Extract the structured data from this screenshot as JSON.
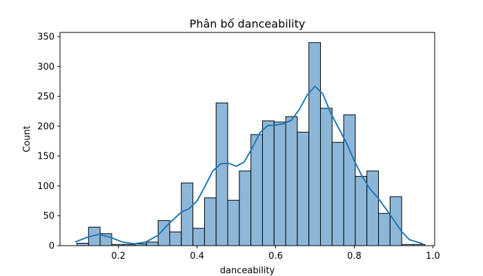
{
  "chart_data": {
    "type": "bar",
    "title": "Phân bố danceability",
    "xlabel": "danceability",
    "ylabel": "Count",
    "xlim": [
      0.0515,
      1.0045
    ],
    "ylim": [
      0,
      357
    ],
    "x_ticks": [
      0.2,
      0.4,
      0.6,
      0.8,
      1.0
    ],
    "x_tick_labels": [
      "0.2",
      "0.4",
      "0.6",
      "0.8",
      "1.0"
    ],
    "y_ticks": [
      0,
      50,
      100,
      150,
      200,
      250,
      300,
      350
    ],
    "y_tick_labels": [
      "0",
      "50",
      "100",
      "150",
      "200",
      "250",
      "300",
      "350"
    ],
    "bin_start": 0.0945,
    "bin_width": 0.0295,
    "values": [
      4,
      31,
      20,
      2,
      2,
      3,
      6,
      42,
      23,
      105,
      29,
      80,
      239,
      76,
      125,
      186,
      209,
      207,
      216,
      190,
      340,
      230,
      173,
      219,
      116,
      125,
      54,
      82,
      2,
      2
    ],
    "kde": {
      "name": "kde",
      "x": [
        0.09,
        0.12,
        0.15,
        0.18,
        0.21,
        0.24,
        0.27,
        0.3,
        0.33,
        0.36,
        0.38,
        0.4,
        0.42,
        0.44,
        0.46,
        0.48,
        0.5,
        0.52,
        0.54,
        0.56,
        0.58,
        0.6,
        0.62,
        0.64,
        0.66,
        0.68,
        0.7,
        0.72,
        0.74,
        0.76,
        0.78,
        0.8,
        0.82,
        0.84,
        0.86,
        0.88,
        0.9,
        0.92,
        0.94,
        0.975
      ],
      "y": [
        6,
        14,
        19,
        14,
        6,
        3,
        6,
        17,
        38,
        56,
        62,
        75,
        99,
        125,
        137,
        138,
        133,
        140,
        163,
        189,
        201,
        202,
        204,
        210,
        228,
        252,
        267,
        254,
        222,
        197,
        172,
        142,
        116,
        95,
        80,
        62,
        43,
        24,
        10,
        3
      ]
    }
  }
}
